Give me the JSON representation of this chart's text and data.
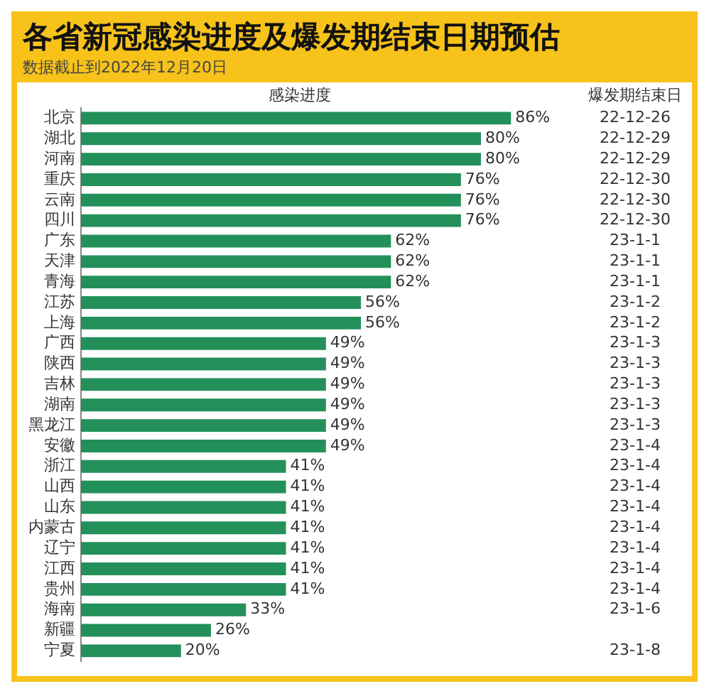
{
  "chart_data": {
    "type": "bar",
    "orientation": "horizontal",
    "title": "各省新冠感染进度及爆发期结束日期预估",
    "subtitle": "数据截止到2022年12月20日",
    "xlabel": "感染进度",
    "categories": [
      "北京",
      "湖北",
      "河南",
      "重庆",
      "云南",
      "四川",
      "广东",
      "天津",
      "青海",
      "江苏",
      "上海",
      "广西",
      "陕西",
      "吉林",
      "湖南",
      "黑龙江",
      "安徽",
      "浙江",
      "山西",
      "山东",
      "内蒙古",
      "辽宁",
      "江西",
      "贵州",
      "海南",
      "新疆",
      "宁夏"
    ],
    "values": [
      86,
      80,
      80,
      76,
      76,
      76,
      62,
      62,
      62,
      56,
      56,
      49,
      49,
      49,
      49,
      49,
      49,
      41,
      41,
      41,
      41,
      41,
      41,
      41,
      33,
      26,
      20
    ],
    "value_labels": [
      "86%",
      "80%",
      "80%",
      "76%",
      "76%",
      "76%",
      "62%",
      "62%",
      "62%",
      "56%",
      "56%",
      "49%",
      "49%",
      "49%",
      "49%",
      "49%",
      "49%",
      "41%",
      "41%",
      "41%",
      "41%",
      "41%",
      "41%",
      "41%",
      "33%",
      "26%",
      "20%"
    ],
    "color": "#23905a",
    "annotations": [
      "爆发期结束日",
      "22-12-26",
      "22-12-29",
      "22-12-29",
      "22-12-30",
      "22-12-30",
      "22-12-30",
      "23-1-1",
      "23-1-1",
      "23-1-1",
      "23-1-2",
      "23-1-2",
      "23-1-3",
      "23-1-3",
      "23-1-3",
      "23-1-3",
      "23-1-3",
      "23-1-4",
      "23-1-4",
      "23-1-4",
      "23-1-4",
      "23-1-4",
      "23-1-4",
      "23-1-4",
      "23-1-4",
      "23-1-6",
      null,
      "23-1-8"
    ]
  }
}
